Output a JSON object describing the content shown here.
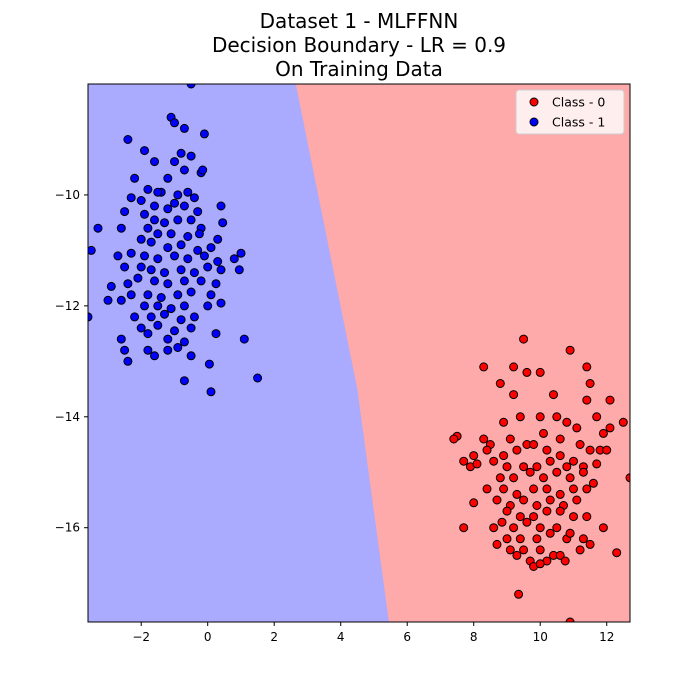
{
  "chart_data": {
    "type": "scatter",
    "title": [
      "Dataset 1 - MLFFNN",
      "Decision Boundary - LR = 0.9",
      "On Training Data"
    ],
    "xlabel": "",
    "ylabel": "",
    "xlim": [
      -3.6,
      12.7
    ],
    "ylim": [
      -17.7,
      -8.0
    ],
    "xticks": [
      -2,
      0,
      2,
      4,
      6,
      8,
      10,
      12
    ],
    "yticks": [
      -16,
      -14,
      -12,
      -10
    ],
    "grid": false,
    "legend_position": "top-right",
    "background_regions": [
      {
        "label": "Class - 1 region",
        "color": "#aaaaff",
        "side": "left"
      },
      {
        "label": "Class - 0 region",
        "color": "#ffaaaa",
        "side": "right"
      }
    ],
    "decision_boundary": [
      [
        2.65,
        -8.0
      ],
      [
        4.5,
        -13.5
      ],
      [
        5.45,
        -17.7
      ]
    ],
    "series": [
      {
        "name": "Class - 0",
        "color": "#ff0000",
        "points": [
          [
            8.3,
            -13.1
          ],
          [
            8.8,
            -13.4
          ],
          [
            9.2,
            -13.1
          ],
          [
            9.6,
            -13.2
          ],
          [
            10.0,
            -13.2
          ],
          [
            10.4,
            -13.6
          ],
          [
            10.9,
            -12.8
          ],
          [
            9.5,
            -12.6
          ],
          [
            11.4,
            -13.1
          ],
          [
            11.5,
            -13.4
          ],
          [
            11.4,
            -13.7
          ],
          [
            12.1,
            -13.7
          ],
          [
            9.2,
            -13.6
          ],
          [
            8.9,
            -14.1
          ],
          [
            9.4,
            -14.0
          ],
          [
            10.0,
            -14.0
          ],
          [
            10.5,
            -14.0
          ],
          [
            10.8,
            -14.1
          ],
          [
            11.1,
            -14.2
          ],
          [
            11.7,
            -14.0
          ],
          [
            12.1,
            -14.2
          ],
          [
            12.5,
            -14.1
          ],
          [
            11.9,
            -14.3
          ],
          [
            11.2,
            -14.5
          ],
          [
            10.6,
            -14.4
          ],
          [
            10.1,
            -14.3
          ],
          [
            9.6,
            -14.5
          ],
          [
            9.1,
            -14.4
          ],
          [
            8.5,
            -14.5
          ],
          [
            8.3,
            -14.4
          ],
          [
            7.5,
            -14.35
          ],
          [
            7.4,
            -14.4
          ],
          [
            8.0,
            -14.7
          ],
          [
            8.4,
            -14.6
          ],
          [
            8.9,
            -14.7
          ],
          [
            9.3,
            -14.6
          ],
          [
            9.8,
            -14.5
          ],
          [
            10.2,
            -14.6
          ],
          [
            10.6,
            -14.7
          ],
          [
            11.0,
            -14.8
          ],
          [
            11.5,
            -14.6
          ],
          [
            11.8,
            -14.6
          ],
          [
            12.0,
            -14.6
          ],
          [
            11.7,
            -14.85
          ],
          [
            11.3,
            -14.9
          ],
          [
            10.8,
            -14.9
          ],
          [
            10.3,
            -14.8
          ],
          [
            9.9,
            -14.9
          ],
          [
            9.5,
            -14.9
          ],
          [
            9.0,
            -14.9
          ],
          [
            8.6,
            -14.8
          ],
          [
            7.9,
            -14.9
          ],
          [
            7.7,
            -14.8
          ],
          [
            8.1,
            -14.85
          ],
          [
            8.8,
            -15.1
          ],
          [
            9.2,
            -15.1
          ],
          [
            9.7,
            -15.0
          ],
          [
            10.1,
            -15.1
          ],
          [
            10.5,
            -15.0
          ],
          [
            10.9,
            -15.1
          ],
          [
            11.3,
            -15.0
          ],
          [
            11.6,
            -15.2
          ],
          [
            12.7,
            -15.1
          ],
          [
            8.4,
            -15.3
          ],
          [
            8.9,
            -15.3
          ],
          [
            9.3,
            -15.4
          ],
          [
            9.8,
            -15.3
          ],
          [
            10.2,
            -15.3
          ],
          [
            10.6,
            -15.4
          ],
          [
            11.0,
            -15.3
          ],
          [
            11.4,
            -15.3
          ],
          [
            8.0,
            -15.55
          ],
          [
            8.7,
            -15.5
          ],
          [
            9.1,
            -15.6
          ],
          [
            9.5,
            -15.5
          ],
          [
            9.9,
            -15.6
          ],
          [
            10.3,
            -15.5
          ],
          [
            10.7,
            -15.6
          ],
          [
            11.1,
            -15.5
          ],
          [
            9.0,
            -15.7
          ],
          [
            9.4,
            -15.8
          ],
          [
            9.8,
            -15.8
          ],
          [
            10.2,
            -15.7
          ],
          [
            10.6,
            -15.7
          ],
          [
            11.0,
            -15.8
          ],
          [
            11.4,
            -15.8
          ],
          [
            7.7,
            -16.0
          ],
          [
            8.6,
            -16.0
          ],
          [
            9.2,
            -16.0
          ],
          [
            9.6,
            -15.9
          ],
          [
            10.0,
            -16.0
          ],
          [
            10.5,
            -16.0
          ],
          [
            10.9,
            -16.1
          ],
          [
            11.9,
            -16.0
          ],
          [
            9.0,
            -16.2
          ],
          [
            9.4,
            -16.2
          ],
          [
            9.9,
            -16.2
          ],
          [
            10.3,
            -16.1
          ],
          [
            10.8,
            -16.2
          ],
          [
            11.3,
            -16.2
          ],
          [
            8.7,
            -16.3
          ],
          [
            9.1,
            -16.4
          ],
          [
            9.5,
            -16.4
          ],
          [
            10.0,
            -16.4
          ],
          [
            10.4,
            -16.5
          ],
          [
            11.2,
            -16.4
          ],
          [
            9.3,
            -16.5
          ],
          [
            9.7,
            -16.6
          ],
          [
            10.2,
            -16.6
          ],
          [
            10.6,
            -16.5
          ],
          [
            9.8,
            -16.7
          ],
          [
            10.0,
            -16.65
          ],
          [
            10.9,
            -16.1
          ],
          [
            11.5,
            -16.3
          ],
          [
            12.3,
            -16.45
          ],
          [
            9.35,
            -17.2
          ],
          [
            10.9,
            -17.7
          ],
          [
            10.75,
            -16.6
          ],
          [
            8.85,
            -15.9
          ]
        ]
      },
      {
        "name": "Class - 1",
        "color": "#0000ff",
        "points": [
          [
            -0.5,
            -8.0
          ],
          [
            -1.1,
            -8.6
          ],
          [
            -1.0,
            -8.7
          ],
          [
            -0.7,
            -8.8
          ],
          [
            -0.1,
            -8.9
          ],
          [
            -2.4,
            -9.0
          ],
          [
            -1.9,
            -9.2
          ],
          [
            -1.6,
            -9.4
          ],
          [
            -1.0,
            -9.4
          ],
          [
            -0.8,
            -9.25
          ],
          [
            -0.5,
            -9.3
          ],
          [
            -0.7,
            -9.55
          ],
          [
            -0.2,
            -9.6
          ],
          [
            -0.15,
            -9.55
          ],
          [
            -1.2,
            -9.7
          ],
          [
            -2.2,
            -9.7
          ],
          [
            -1.8,
            -9.9
          ],
          [
            -1.4,
            -9.95
          ],
          [
            -1.5,
            -9.95
          ],
          [
            -0.9,
            -10.0
          ],
          [
            -0.6,
            -9.95
          ],
          [
            -0.4,
            -10.05
          ],
          [
            -2.3,
            -10.05
          ],
          [
            -2.0,
            -10.1
          ],
          [
            -1.6,
            -10.2
          ],
          [
            -1.2,
            -10.25
          ],
          [
            -1.0,
            -10.15
          ],
          [
            -0.7,
            -10.2
          ],
          [
            -0.3,
            -10.3
          ],
          [
            0.4,
            -10.2
          ],
          [
            -2.5,
            -10.3
          ],
          [
            -1.9,
            -10.35
          ],
          [
            -1.6,
            -10.45
          ],
          [
            -1.3,
            -10.5
          ],
          [
            -0.9,
            -10.45
          ],
          [
            -0.5,
            -10.45
          ],
          [
            0.45,
            -10.5
          ],
          [
            -3.3,
            -10.6
          ],
          [
            -2.6,
            -10.6
          ],
          [
            -1.8,
            -10.6
          ],
          [
            -1.5,
            -10.7
          ],
          [
            -1.1,
            -10.7
          ],
          [
            -0.6,
            -10.75
          ],
          [
            -0.2,
            -10.6
          ],
          [
            -0.25,
            -10.7
          ],
          [
            0.3,
            -10.8
          ],
          [
            -2.0,
            -10.8
          ],
          [
            -1.7,
            -10.85
          ],
          [
            -1.2,
            -10.95
          ],
          [
            -0.8,
            -10.9
          ],
          [
            -0.3,
            -11.0
          ],
          [
            0.1,
            -10.95
          ],
          [
            -3.5,
            -11.0
          ],
          [
            -2.7,
            -11.1
          ],
          [
            -2.3,
            -11.05
          ],
          [
            -1.9,
            -11.1
          ],
          [
            -1.5,
            -11.15
          ],
          [
            -1.0,
            -11.1
          ],
          [
            -0.6,
            -11.15
          ],
          [
            -0.1,
            -11.1
          ],
          [
            0.3,
            -11.2
          ],
          [
            0.8,
            -11.15
          ],
          [
            1.0,
            -11.05
          ],
          [
            -2.5,
            -11.3
          ],
          [
            -2.0,
            -11.3
          ],
          [
            -1.7,
            -11.35
          ],
          [
            -1.3,
            -11.4
          ],
          [
            -0.8,
            -11.35
          ],
          [
            -0.4,
            -11.4
          ],
          [
            0.0,
            -11.3
          ],
          [
            0.4,
            -11.35
          ],
          [
            0.95,
            -11.35
          ],
          [
            -2.1,
            -11.5
          ],
          [
            -1.6,
            -11.55
          ],
          [
            -1.2,
            -11.6
          ],
          [
            -0.7,
            -11.55
          ],
          [
            -0.2,
            -11.55
          ],
          [
            0.25,
            -11.6
          ],
          [
            -2.4,
            -11.6
          ],
          [
            -2.9,
            -11.65
          ],
          [
            -2.3,
            -11.8
          ],
          [
            -1.8,
            -11.8
          ],
          [
            -1.4,
            -11.85
          ],
          [
            -0.9,
            -11.8
          ],
          [
            -0.5,
            -11.75
          ],
          [
            0.1,
            -11.8
          ],
          [
            -3.0,
            -11.9
          ],
          [
            -2.6,
            -11.9
          ],
          [
            -1.9,
            -12.0
          ],
          [
            -1.5,
            -12.0
          ],
          [
            -1.1,
            -12.05
          ],
          [
            -0.7,
            -12.0
          ],
          [
            0.0,
            -12.0
          ],
          [
            0.4,
            -11.95
          ],
          [
            -2.2,
            -12.2
          ],
          [
            -1.7,
            -12.2
          ],
          [
            -1.3,
            -12.15
          ],
          [
            -0.8,
            -12.25
          ],
          [
            -0.4,
            -12.2
          ],
          [
            -2.0,
            -12.4
          ],
          [
            -1.5,
            -12.35
          ],
          [
            -1.0,
            -12.45
          ],
          [
            -0.5,
            -12.4
          ],
          [
            -1.8,
            -12.5
          ],
          [
            -1.2,
            -12.6
          ],
          [
            -0.7,
            -12.65
          ],
          [
            0.25,
            -12.5
          ],
          [
            1.1,
            -12.6
          ],
          [
            -2.6,
            -12.6
          ],
          [
            -2.5,
            -12.8
          ],
          [
            -1.8,
            -12.8
          ],
          [
            -1.2,
            -12.8
          ],
          [
            -0.9,
            -12.75
          ],
          [
            -2.4,
            -13.0
          ],
          [
            -1.6,
            -12.9
          ],
          [
            -0.5,
            -12.9
          ],
          [
            0.05,
            -13.05
          ],
          [
            -0.7,
            -13.35
          ],
          [
            0.1,
            -13.55
          ],
          [
            1.5,
            -13.3
          ],
          [
            -3.6,
            -12.2
          ]
        ]
      }
    ]
  }
}
